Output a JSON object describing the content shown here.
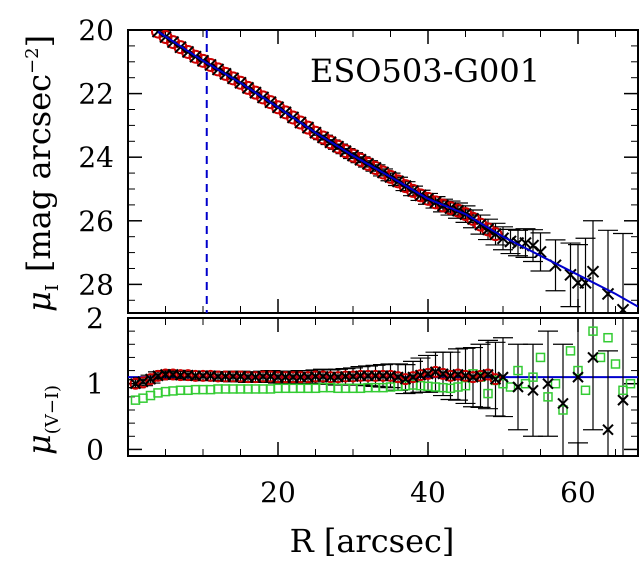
{
  "chart_data": [
    {
      "panel": "top",
      "type": "scatter",
      "title": "ESO503-G001",
      "ylabel": "μ_I [mag arcsec^-2]",
      "ylabel_text": "[mag arcsec",
      "ylabel_exp": "−2",
      "ylabel_close": "]",
      "ylabel_symbol": "μ",
      "ylabel_sub": "I",
      "xlim": [
        0,
        68
      ],
      "ylim": [
        28.9,
        20.0
      ],
      "y_inverted": true,
      "yticks": [
        20,
        22,
        24,
        26,
        28
      ],
      "vline_x": 10.5,
      "colors": {
        "circles": "#cc0000",
        "crosses": "#000000",
        "fit_line": "#0000cc",
        "vline": "#0000cc"
      },
      "series": [
        {
          "marker": "circle",
          "color": "#cc0000",
          "x": [
            4,
            5,
            6,
            7,
            8,
            9,
            10,
            11,
            12,
            13,
            14,
            15,
            16,
            17,
            18,
            19,
            20,
            21,
            22,
            23,
            24,
            25,
            26,
            27,
            28,
            29,
            30,
            31,
            32,
            33,
            34,
            35,
            36,
            37,
            38,
            39,
            40,
            41,
            42,
            43,
            44,
            45,
            46,
            47,
            48,
            49
          ],
          "y": [
            20.05,
            20.22,
            20.38,
            20.54,
            20.69,
            20.84,
            20.97,
            21.1,
            21.24,
            21.38,
            21.52,
            21.66,
            21.82,
            21.97,
            22.12,
            22.27,
            22.43,
            22.59,
            22.75,
            22.91,
            23.07,
            23.23,
            23.38,
            23.53,
            23.67,
            23.81,
            23.95,
            24.08,
            24.21,
            24.34,
            24.48,
            24.62,
            24.76,
            24.91,
            25.06,
            25.2,
            25.31,
            25.42,
            25.52,
            25.6,
            25.68,
            25.79,
            25.94,
            26.12,
            26.27,
            26.42
          ]
        },
        {
          "marker": "cross",
          "color": "#000000",
          "x": [
            4,
            5,
            6,
            7,
            8,
            9,
            10,
            11,
            12,
            13,
            14,
            15,
            16,
            17,
            18,
            19,
            20,
            21,
            22,
            23,
            24,
            25,
            26,
            27,
            28,
            29,
            30,
            31,
            32,
            33,
            34,
            35,
            36,
            37,
            38,
            39,
            40,
            41,
            42,
            43,
            44,
            45,
            46,
            47,
            48,
            49,
            50,
            51,
            52,
            53,
            54,
            55,
            57,
            59,
            60,
            61,
            62,
            64,
            66
          ],
          "y": [
            20.05,
            20.22,
            20.38,
            20.54,
            20.69,
            20.84,
            20.97,
            21.1,
            21.24,
            21.38,
            21.52,
            21.66,
            21.82,
            21.97,
            22.12,
            22.27,
            22.43,
            22.59,
            22.75,
            22.91,
            23.07,
            23.23,
            23.38,
            23.53,
            23.67,
            23.81,
            23.95,
            24.08,
            24.21,
            24.34,
            24.48,
            24.62,
            24.76,
            24.91,
            25.06,
            25.2,
            25.31,
            25.42,
            25.52,
            25.6,
            25.68,
            25.79,
            25.94,
            26.12,
            26.27,
            26.42,
            26.55,
            26.65,
            26.7,
            26.7,
            26.78,
            26.98,
            27.4,
            27.7,
            27.95,
            27.95,
            27.6,
            28.3,
            28.8
          ],
          "yerr": [
            0.03,
            0.03,
            0.03,
            0.03,
            0.03,
            0.03,
            0.03,
            0.03,
            0.03,
            0.03,
            0.04,
            0.04,
            0.04,
            0.04,
            0.04,
            0.05,
            0.05,
            0.05,
            0.05,
            0.06,
            0.06,
            0.06,
            0.07,
            0.07,
            0.08,
            0.08,
            0.09,
            0.09,
            0.1,
            0.1,
            0.11,
            0.12,
            0.13,
            0.14,
            0.15,
            0.16,
            0.17,
            0.18,
            0.2,
            0.22,
            0.24,
            0.26,
            0.28,
            0.3,
            0.32,
            0.34,
            0.36,
            0.38,
            0.4,
            0.45,
            0.5,
            0.6,
            0.8,
            1.0,
            1.2,
            1.4,
            1.6,
            2.0,
            2.4
          ]
        }
      ],
      "fit_line": {
        "x": [
          4,
          10,
          15,
          20,
          25,
          30,
          35,
          40,
          45,
          50,
          55,
          60,
          65,
          68
        ],
        "y": [
          20.05,
          20.97,
          21.66,
          22.43,
          23.23,
          23.95,
          24.62,
          25.31,
          25.79,
          26.5,
          27.1,
          27.7,
          28.3,
          28.7
        ]
      }
    },
    {
      "panel": "bottom",
      "type": "scatter",
      "xlabel": "R [arcsec]",
      "ylabel": "μ_(V−I)",
      "ylabel_symbol": "μ",
      "ylabel_sub": "(V−I)",
      "xlim": [
        0,
        68
      ],
      "ylim": [
        -0.1,
        2.0
      ],
      "xticks": [
        20,
        40,
        60
      ],
      "yticks": [
        0,
        1,
        2
      ],
      "colors": {
        "circles": "#cc0000",
        "crosses": "#000000",
        "squares": "#33cc33",
        "line": "#0000cc"
      },
      "blue_line_y": 1.1,
      "series": [
        {
          "marker": "circle",
          "color": "#cc0000",
          "x": [
            1,
            2,
            3,
            4,
            5,
            6,
            7,
            8,
            9,
            10,
            11,
            12,
            13,
            14,
            15,
            16,
            17,
            18,
            19,
            20,
            21,
            22,
            23,
            24,
            25,
            26,
            27,
            28,
            29,
            30,
            31,
            32,
            33,
            34,
            35,
            36,
            37,
            38,
            39,
            40,
            41,
            42,
            43,
            44,
            45,
            46,
            47,
            48,
            49
          ],
          "y": [
            1.0,
            1.02,
            1.07,
            1.12,
            1.14,
            1.14,
            1.13,
            1.13,
            1.12,
            1.12,
            1.12,
            1.11,
            1.11,
            1.11,
            1.11,
            1.1,
            1.1,
            1.11,
            1.11,
            1.1,
            1.1,
            1.1,
            1.1,
            1.1,
            1.11,
            1.11,
            1.1,
            1.1,
            1.11,
            1.11,
            1.12,
            1.12,
            1.12,
            1.12,
            1.12,
            1.1,
            1.07,
            1.1,
            1.13,
            1.15,
            1.18,
            1.15,
            1.12,
            1.14,
            1.12,
            1.1,
            1.12,
            1.14,
            1.07
          ]
        },
        {
          "marker": "cross",
          "color": "#000000",
          "x": [
            1,
            2,
            3,
            4,
            5,
            6,
            7,
            8,
            9,
            10,
            11,
            12,
            13,
            14,
            15,
            16,
            17,
            18,
            19,
            20,
            21,
            22,
            23,
            24,
            25,
            26,
            27,
            28,
            29,
            30,
            31,
            32,
            33,
            34,
            35,
            36,
            37,
            38,
            39,
            40,
            41,
            42,
            43,
            44,
            45,
            46,
            47,
            48,
            49,
            50,
            52,
            54,
            56,
            58,
            60,
            62,
            64,
            66
          ],
          "y": [
            1.0,
            1.03,
            1.07,
            1.12,
            1.14,
            1.14,
            1.13,
            1.13,
            1.12,
            1.12,
            1.12,
            1.11,
            1.11,
            1.11,
            1.11,
            1.1,
            1.1,
            1.11,
            1.11,
            1.1,
            1.1,
            1.1,
            1.1,
            1.1,
            1.11,
            1.11,
            1.1,
            1.1,
            1.11,
            1.11,
            1.12,
            1.12,
            1.12,
            1.12,
            1.12,
            1.1,
            1.07,
            1.1,
            1.13,
            1.15,
            1.18,
            1.15,
            1.12,
            1.14,
            1.12,
            1.1,
            1.12,
            1.14,
            1.07,
            1.1,
            0.95,
            0.9,
            1.0,
            0.7,
            1.1,
            1.4,
            0.3,
            0.75
          ],
          "yerr": [
            0.06,
            0.06,
            0.06,
            0.06,
            0.06,
            0.06,
            0.06,
            0.06,
            0.07,
            0.07,
            0.07,
            0.07,
            0.07,
            0.08,
            0.08,
            0.08,
            0.08,
            0.08,
            0.09,
            0.09,
            0.09,
            0.09,
            0.1,
            0.1,
            0.1,
            0.11,
            0.11,
            0.12,
            0.12,
            0.13,
            0.14,
            0.15,
            0.16,
            0.17,
            0.18,
            0.2,
            0.22,
            0.24,
            0.26,
            0.28,
            0.3,
            0.33,
            0.36,
            0.39,
            0.42,
            0.45,
            0.48,
            0.52,
            0.56,
            0.6,
            0.65,
            0.7,
            0.8,
            0.9,
            1.0,
            1.1,
            1.2,
            1.3
          ]
        },
        {
          "marker": "square",
          "color": "#33cc33",
          "x": [
            1,
            2,
            3,
            4,
            5,
            6,
            7,
            8,
            9,
            10,
            11,
            12,
            13,
            14,
            15,
            16,
            17,
            18,
            19,
            20,
            21,
            22,
            23,
            24,
            25,
            26,
            27,
            28,
            29,
            30,
            31,
            32,
            33,
            34,
            35,
            36,
            37,
            38,
            39,
            40,
            41,
            42,
            43,
            44,
            45,
            46,
            47,
            48,
            49,
            50,
            51,
            52,
            53,
            54,
            55,
            56,
            57,
            58,
            59,
            60,
            61,
            62,
            63,
            64,
            65,
            66,
            67
          ],
          "y": [
            0.75,
            0.78,
            0.82,
            0.86,
            0.88,
            0.89,
            0.9,
            0.9,
            0.91,
            0.91,
            0.91,
            0.92,
            0.92,
            0.92,
            0.92,
            0.92,
            0.92,
            0.92,
            0.92,
            0.93,
            0.93,
            0.93,
            0.93,
            0.93,
            0.93,
            0.94,
            0.94,
            0.93,
            0.93,
            0.93,
            0.93,
            0.94,
            0.94,
            0.94,
            0.95,
            0.96,
            0.97,
            0.98,
            0.97,
            0.96,
            0.95,
            0.94,
            0.93,
            0.95,
            0.97,
            1.15,
            1.1,
            0.85,
            1.05,
            1.0,
            0.95,
            1.2,
            1.0,
            1.1,
            1.4,
            0.8,
            1.0,
            0.6,
            1.5,
            1.2,
            0.9,
            1.8,
            1.4,
            1.7,
            1.3,
            0.9,
            1.0
          ]
        }
      ]
    }
  ]
}
